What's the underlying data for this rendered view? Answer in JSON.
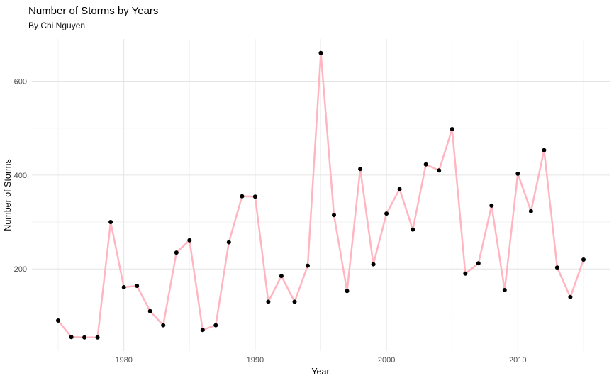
{
  "header": {
    "title": "Number of Storms by Years",
    "subtitle": "By Chi Nguyen"
  },
  "chart_data": {
    "type": "line",
    "title": "Number of Storms by Years",
    "subtitle": "By Chi Nguyen",
    "xlabel": "Year",
    "ylabel": "Number of Storms",
    "x": [
      1975,
      1976,
      1977,
      1978,
      1979,
      1980,
      1981,
      1982,
      1983,
      1984,
      1985,
      1986,
      1987,
      1988,
      1989,
      1990,
      1991,
      1992,
      1993,
      1994,
      1995,
      1996,
      1997,
      1998,
      1999,
      2000,
      2001,
      2002,
      2003,
      2004,
      2005,
      2006,
      2007,
      2008,
      2009,
      2010,
      2011,
      2012,
      2013,
      2014,
      2015
    ],
    "values": [
      90,
      55,
      54,
      54,
      300,
      161,
      164,
      110,
      80,
      235,
      261,
      70,
      80,
      257,
      355,
      354,
      130,
      185,
      130,
      207,
      660,
      315,
      153,
      413,
      210,
      318,
      370,
      284,
      423,
      410,
      498,
      190,
      212,
      335,
      155,
      403,
      323,
      453,
      203,
      140,
      220
    ],
    "xlim": [
      1973,
      2017
    ],
    "ylim": [
      25,
      690
    ],
    "x_ticks": [
      1980,
      1990,
      2000,
      2010
    ],
    "y_ticks": [
      200,
      400,
      600
    ],
    "x_minor_ticks": [
      1975,
      1985,
      1995,
      2005,
      2015
    ],
    "y_minor_ticks": [
      100,
      300,
      500
    ],
    "grid": true,
    "legend": "none",
    "line_color": "#ffb6c1",
    "point_color": "#000000"
  }
}
